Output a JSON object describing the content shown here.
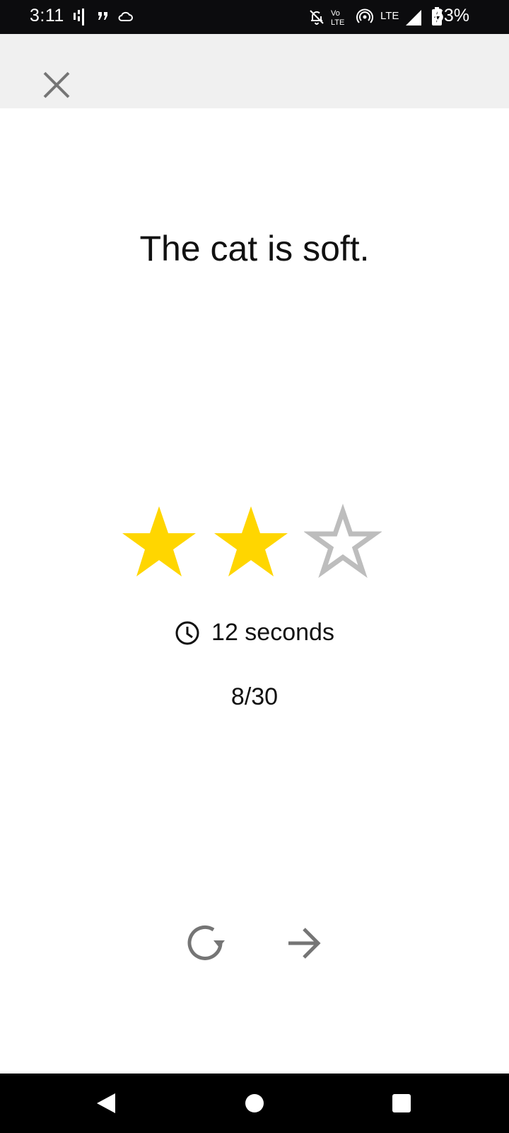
{
  "status_bar": {
    "time": "3:11",
    "battery": "63%",
    "network": "LTE",
    "icons": [
      "signal-bars-icon",
      "quote-icon",
      "cloud-icon",
      "mute-bell-icon",
      "volte-icon",
      "hotspot-icon",
      "lte-icon",
      "cell-signal-icon",
      "battery-charging-icon"
    ]
  },
  "toolbar": {
    "close_icon": "close-icon"
  },
  "sentence": "The cat is soft.",
  "rating": {
    "stars_total": 3,
    "stars_filled": 2,
    "filled_color": "#FFD600",
    "empty_color": "#BDBDBD"
  },
  "timer": {
    "icon": "clock-icon",
    "text": "12 seconds"
  },
  "progress": "8/30",
  "actions": {
    "retry_icon": "retry-icon",
    "next_icon": "arrow-right-icon"
  },
  "nav_bar": {
    "icons": [
      "back-icon",
      "home-icon",
      "recents-icon"
    ]
  }
}
